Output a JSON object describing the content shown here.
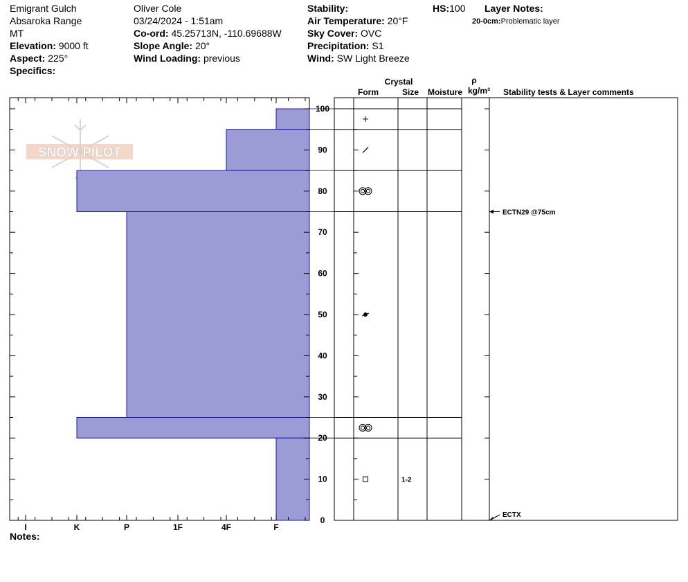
{
  "header": {
    "location": "Emigrant Gulch",
    "range": "Absaroka Range",
    "state": "MT",
    "elevation_label": "Elevation:",
    "elevation": "9000 ft",
    "aspect_label": "Aspect:",
    "aspect": "225°",
    "specifics_label": "Specifics:",
    "observer": "Oliver Cole",
    "datetime": "03/24/2024 - 1:51am",
    "coord_label": "Co-ord:",
    "coord": "45.25713N, -110.69688W",
    "slope_label": "Slope Angle:",
    "slope": "20°",
    "wind_loading_label": "Wind Loading:",
    "wind_loading": "previous",
    "stability_label": "Stability:",
    "air_temp_label": "Air Temperature:",
    "air_temp": "20°F",
    "sky_label": "Sky Cover:",
    "sky": "OVC",
    "precip_label": "Precipitation:",
    "precip": "S1",
    "wind_label": "Wind:",
    "wind": " SW Light Breeze",
    "hs_label": "HS:",
    "hs": "100",
    "layer_notes_label": "Layer Notes:",
    "layer_note_range": "20-0cm:",
    "layer_note_text": "Problematic layer",
    "notes_label": "Notes:"
  },
  "columns": {
    "crystal": "Crystal",
    "form": "Form",
    "size": "Size",
    "moisture": "Moisture",
    "rho": "ρ",
    "density_unit": "kg/m³",
    "stability": "Stability tests & Layer comments"
  },
  "logo_text": "SNOW PILOT",
  "chart_data": {
    "type": "bar",
    "orientation": "horizontal",
    "hardness_axis": [
      "I",
      "K",
      "P",
      "1F",
      "4F",
      "F"
    ],
    "depth_axis": {
      "min": 0,
      "max": 100,
      "ticks": [
        "0",
        "10",
        "20",
        "30",
        "40",
        "50",
        "60",
        "70",
        "80",
        "90",
        "100"
      ]
    },
    "layers": [
      {
        "top": 100,
        "bottom": 95,
        "hardness": "F"
      },
      {
        "top": 95,
        "bottom": 85,
        "hardness": "4F"
      },
      {
        "top": 85,
        "bottom": 75,
        "hardness": "K"
      },
      {
        "top": 75,
        "bottom": 25,
        "hardness": "P"
      },
      {
        "top": 25,
        "bottom": 20,
        "hardness": "K"
      },
      {
        "top": 20,
        "bottom": 0,
        "hardness": "F"
      }
    ],
    "crystal_forms": [
      {
        "depth": 97.5,
        "symbol": "plus",
        "size": ""
      },
      {
        "depth": 90,
        "symbol": "slash",
        "size": ""
      },
      {
        "depth": 80,
        "symbol": "double-circle",
        "size": ""
      },
      {
        "depth": 50,
        "symbol": "dot",
        "size": ""
      },
      {
        "depth": 22.5,
        "symbol": "double-circle",
        "size": ""
      },
      {
        "depth": 10,
        "symbol": "square",
        "size": "1-2"
      }
    ],
    "stability_tests": [
      {
        "depth": 75,
        "label": "ECTN29 @75cm"
      },
      {
        "depth": 0,
        "label": "ECTX"
      }
    ],
    "bar_color": "#9b9bd6",
    "line_color": "#1a1aa8"
  }
}
